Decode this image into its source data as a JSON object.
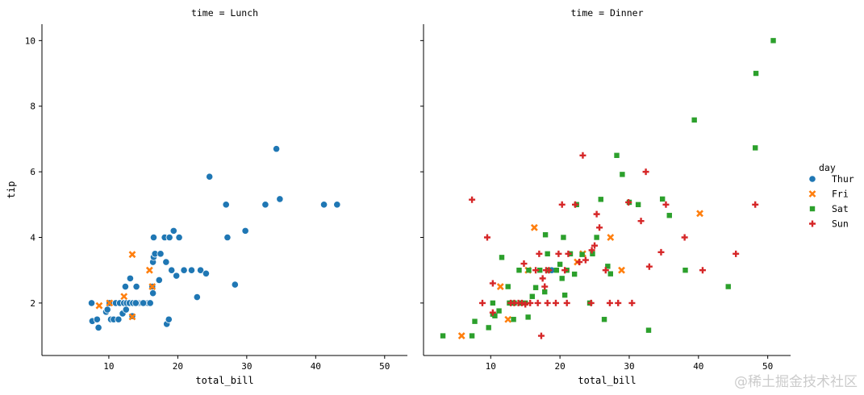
{
  "watermark": "@稀土掘金技术社区",
  "chart_data": {
    "type": "scatter",
    "facet_row_label": "time",
    "x_label": "total_bill",
    "y_label": "tip",
    "xlim": [
      0.3,
      53.3
    ],
    "ylim": [
      0.4,
      10.5
    ],
    "x_ticks": [
      10,
      20,
      30,
      40,
      50
    ],
    "y_ticks": [
      2,
      4,
      6,
      8,
      10
    ],
    "grid": false,
    "legend": {
      "title": "day",
      "placement": "right",
      "entries": [
        {
          "label": "Thur",
          "color": "#1f77b4",
          "marker": "circle"
        },
        {
          "label": "Fri",
          "color": "#ff7f0e",
          "marker": "x"
        },
        {
          "label": "Sat",
          "color": "#2ca02c",
          "marker": "square"
        },
        {
          "label": "Sun",
          "color": "#d62728",
          "marker": "plus"
        }
      ]
    },
    "facets": [
      {
        "title": "time = Lunch",
        "series": [
          {
            "name": "Thur",
            "points": [
              [
                7.5,
                2.0
              ],
              [
                7.6,
                1.45
              ],
              [
                8.3,
                1.5
              ],
              [
                8.5,
                1.25
              ],
              [
                9.6,
                1.73
              ],
              [
                9.8,
                1.8
              ],
              [
                10.1,
                2.0
              ],
              [
                10.3,
                1.5
              ],
              [
                10.7,
                1.5
              ],
              [
                11.0,
                2.0
              ],
              [
                11.4,
                1.5
              ],
              [
                11.6,
                2.0
              ],
              [
                12.0,
                1.68
              ],
              [
                12.2,
                2.0
              ],
              [
                12.4,
                2.5
              ],
              [
                12.5,
                1.8
              ],
              [
                12.6,
                2.0
              ],
              [
                13.0,
                2.0
              ],
              [
                13.1,
                2.75
              ],
              [
                13.4,
                1.6
              ],
              [
                13.5,
                2.0
              ],
              [
                14.0,
                2.5
              ],
              [
                14.1,
                2.0
              ],
              [
                14.5,
                2.0
              ],
              [
                14.8,
                2.0
              ],
              [
                15.4,
                2.0
              ],
              [
                15.7,
                2.0
              ],
              [
                16.0,
                2.0
              ],
              [
                16.3,
                2.5
              ],
              [
                16.4,
                2.3
              ],
              [
                16.4,
                3.25
              ],
              [
                16.5,
                4.0
              ],
              [
                16.5,
                3.4
              ],
              [
                16.7,
                3.5
              ],
              [
                17.3,
                2.7
              ],
              [
                17.5,
                3.5
              ],
              [
                18.1,
                4.0
              ],
              [
                18.3,
                3.25
              ],
              [
                18.4,
                1.36
              ],
              [
                18.7,
                1.5
              ],
              [
                18.8,
                4.0
              ],
              [
                19.1,
                3.0
              ],
              [
                19.4,
                4.2
              ],
              [
                19.8,
                2.83
              ],
              [
                20.2,
                4.0
              ],
              [
                20.9,
                3.0
              ],
              [
                22.0,
                3.0
              ],
              [
                22.8,
                2.18
              ],
              [
                23.3,
                3.0
              ],
              [
                24.1,
                2.9
              ],
              [
                24.6,
                5.85
              ],
              [
                27.0,
                5.0
              ],
              [
                27.2,
                4.0
              ],
              [
                28.3,
                2.56
              ],
              [
                29.8,
                4.2
              ],
              [
                32.7,
                5.0
              ],
              [
                34.3,
                6.7
              ],
              [
                34.8,
                5.17
              ],
              [
                41.2,
                5.0
              ],
              [
                43.1,
                5.0
              ],
              [
                13.9,
                2.0
              ],
              [
                15.0,
                2.0
              ]
            ]
          },
          {
            "name": "Fri",
            "points": [
              [
                8.6,
                1.92
              ],
              [
                10.1,
                2.0
              ],
              [
                12.2,
                2.2
              ],
              [
                13.4,
                3.48
              ],
              [
                13.4,
                1.58
              ],
              [
                15.9,
                3.0
              ],
              [
                16.3,
                2.5
              ]
            ]
          }
        ]
      },
      {
        "title": "time = Dinner",
        "series": [
          {
            "name": "Thur",
            "points": [
              [
                18.8,
                3.0
              ]
            ]
          },
          {
            "name": "Fri",
            "points": [
              [
                5.8,
                1.0
              ],
              [
                11.4,
                2.5
              ],
              [
                12.5,
                1.5
              ],
              [
                15.4,
                3.0
              ],
              [
                16.3,
                4.3
              ],
              [
                22.5,
                3.25
              ],
              [
                23.3,
                3.5
              ],
              [
                27.3,
                4.0
              ],
              [
                28.9,
                3.0
              ],
              [
                40.2,
                4.73
              ]
            ]
          },
          {
            "name": "Sat",
            "points": [
              [
                3.1,
                1.0
              ],
              [
                7.3,
                1.0
              ],
              [
                7.7,
                1.44
              ],
              [
                9.7,
                1.25
              ],
              [
                10.3,
                1.66
              ],
              [
                10.3,
                2.0
              ],
              [
                10.6,
                1.61
              ],
              [
                11.2,
                1.76
              ],
              [
                11.6,
                3.39
              ],
              [
                12.5,
                2.5
              ],
              [
                12.7,
                2.0
              ],
              [
                13.0,
                2.0
              ],
              [
                13.3,
                1.5
              ],
              [
                13.4,
                2.0
              ],
              [
                14.1,
                3.0
              ],
              [
                14.3,
                2.0
              ],
              [
                15.0,
                2.0
              ],
              [
                15.4,
                1.57
              ],
              [
                15.5,
                3.0
              ],
              [
                16.0,
                2.2
              ],
              [
                16.5,
                2.47
              ],
              [
                17.1,
                3.0
              ],
              [
                17.8,
                2.34
              ],
              [
                17.9,
                4.08
              ],
              [
                18.2,
                3.5
              ],
              [
                18.3,
                3.0
              ],
              [
                19.5,
                3.0
              ],
              [
                20.0,
                3.18
              ],
              [
                20.3,
                2.75
              ],
              [
                20.5,
                4.0
              ],
              [
                20.7,
                2.24
              ],
              [
                21.0,
                3.0
              ],
              [
                21.5,
                3.5
              ],
              [
                22.1,
                2.88
              ],
              [
                22.4,
                5.0
              ],
              [
                23.2,
                3.48
              ],
              [
                24.3,
                2.0
              ],
              [
                24.7,
                3.5
              ],
              [
                25.3,
                4.0
              ],
              [
                25.9,
                5.16
              ],
              [
                26.4,
                1.5
              ],
              [
                26.9,
                3.12
              ],
              [
                27.3,
                2.89
              ],
              [
                28.2,
                6.5
              ],
              [
                29.0,
                5.92
              ],
              [
                30.0,
                5.07
              ],
              [
                31.3,
                5.0
              ],
              [
                32.8,
                1.17
              ],
              [
                34.8,
                5.17
              ],
              [
                35.8,
                4.67
              ],
              [
                38.1,
                3.0
              ],
              [
                39.4,
                7.58
              ],
              [
                44.3,
                2.5
              ],
              [
                48.2,
                6.73
              ],
              [
                48.3,
                9.0
              ],
              [
                50.8,
                10.0
              ]
            ]
          },
          {
            "name": "Sun",
            "points": [
              [
                7.3,
                5.15
              ],
              [
                8.8,
                2.0
              ],
              [
                9.5,
                4.0
              ],
              [
                10.3,
                2.6
              ],
              [
                10.3,
                1.71
              ],
              [
                12.9,
                2.0
              ],
              [
                13.4,
                2.0
              ],
              [
                14.0,
                2.0
              ],
              [
                14.8,
                3.2
              ],
              [
                15.0,
                1.96
              ],
              [
                15.7,
                2.0
              ],
              [
                16.5,
                3.0
              ],
              [
                17.0,
                3.5
              ],
              [
                17.5,
                2.75
              ],
              [
                17.8,
                2.5
              ],
              [
                18.0,
                3.0
              ],
              [
                18.2,
                2.0
              ],
              [
                18.4,
                3.0
              ],
              [
                19.4,
                2.0
              ],
              [
                20.3,
                5.0
              ],
              [
                20.7,
                3.0
              ],
              [
                21.0,
                2.0
              ],
              [
                21.2,
                3.5
              ],
              [
                22.2,
                5.0
              ],
              [
                22.8,
                3.25
              ],
              [
                23.3,
                6.5
              ],
              [
                23.7,
                3.31
              ],
              [
                24.5,
                2.0
              ],
              [
                24.6,
                3.61
              ],
              [
                25.0,
                3.75
              ],
              [
                25.3,
                4.71
              ],
              [
                25.7,
                4.3
              ],
              [
                27.2,
                2.0
              ],
              [
                28.4,
                2.0
              ],
              [
                29.9,
                5.07
              ],
              [
                30.4,
                2.0
              ],
              [
                31.7,
                4.5
              ],
              [
                32.4,
                6.0
              ],
              [
                32.9,
                3.11
              ],
              [
                34.6,
                3.55
              ],
              [
                35.3,
                5.0
              ],
              [
                38.0,
                4.0
              ],
              [
                40.6,
                3.0
              ],
              [
                45.4,
                3.5
              ],
              [
                48.2,
                5.0
              ],
              [
                16.8,
                2.0
              ],
              [
                19.8,
                3.5
              ],
              [
                26.6,
                3.0
              ],
              [
                14.5,
                2.0
              ],
              [
                17.3,
                1.0
              ]
            ]
          }
        ]
      }
    ]
  }
}
